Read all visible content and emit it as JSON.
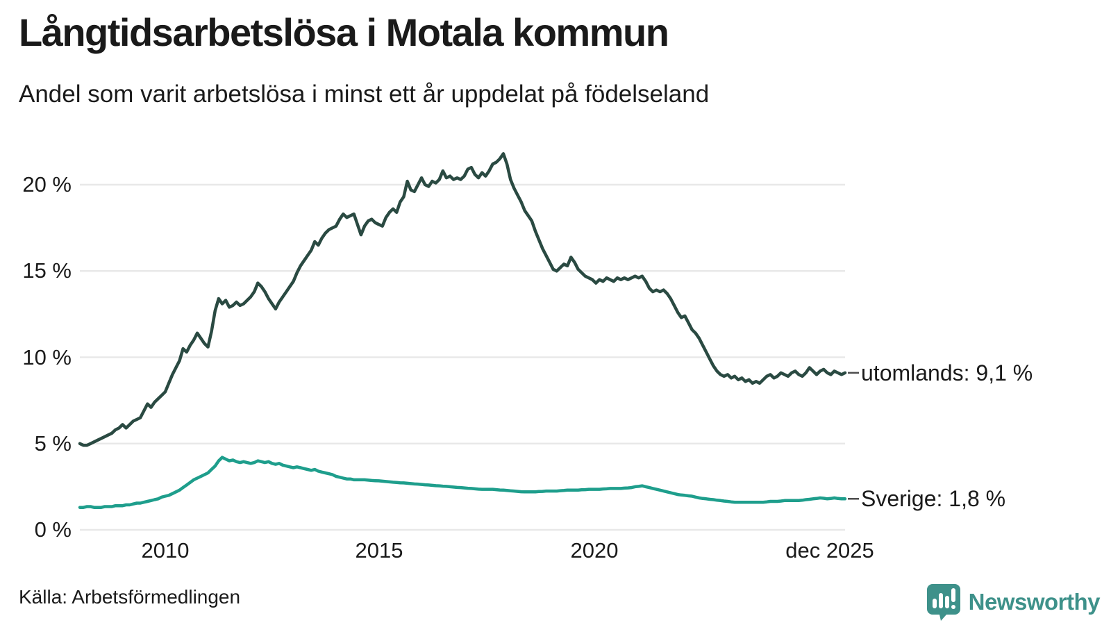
{
  "header": {
    "title": "Långtidsarbetslösa i Motala kommun",
    "subtitle": "Andel som varit arbetslösa i minst ett år uppdelat på födelseland"
  },
  "footer": {
    "source": "Källa: Arbetsförmedlingen",
    "brand": "Newsworthy",
    "brand_color": "#3e918a"
  },
  "chart_data": {
    "type": "line",
    "title": "Långtidsarbetslösa i Motala kommun",
    "subtitle": "Andel som varit arbetslösa i minst ett år uppdelat på födelseland",
    "unit": "%",
    "grid": true,
    "gridline_color": "#e8e8e8",
    "x_start": "jan 2008",
    "x_end": "dec 2025",
    "x_ticks": [
      "2010",
      "2015",
      "2020",
      "dec 2025"
    ],
    "x_tick_positions": [
      2010.0,
      2015.0,
      2020.0,
      2025.917
    ],
    "y_ticks": [
      "20 %",
      "15 %",
      "10 %",
      "5 %",
      "0 %"
    ],
    "y_tick_values": [
      20,
      15,
      10,
      5,
      0
    ],
    "ylim": [
      0,
      22
    ],
    "frequency": "monthly",
    "series": [
      {
        "name": "utomlands",
        "label": "utomlands: 9,1 %",
        "last_value": 9.1,
        "color": "#2a4a42",
        "values": [
          5.0,
          4.9,
          4.9,
          5.0,
          5.1,
          5.2,
          5.3,
          5.4,
          5.5,
          5.6,
          5.8,
          5.9,
          6.1,
          5.9,
          6.1,
          6.3,
          6.4,
          6.5,
          6.9,
          7.3,
          7.1,
          7.4,
          7.6,
          7.8,
          8.0,
          8.5,
          9.0,
          9.4,
          9.8,
          10.5,
          10.3,
          10.7,
          11.0,
          11.4,
          11.1,
          10.8,
          10.6,
          11.5,
          12.7,
          13.4,
          13.1,
          13.3,
          12.9,
          13.0,
          13.2,
          13.0,
          13.1,
          13.3,
          13.5,
          13.8,
          14.3,
          14.1,
          13.8,
          13.4,
          13.1,
          12.8,
          13.2,
          13.5,
          13.8,
          14.1,
          14.4,
          14.9,
          15.3,
          15.6,
          15.9,
          16.2,
          16.7,
          16.5,
          16.9,
          17.2,
          17.4,
          17.5,
          17.6,
          18.0,
          18.3,
          18.1,
          18.2,
          18.3,
          17.7,
          17.1,
          17.6,
          17.9,
          18.0,
          17.8,
          17.7,
          17.6,
          18.1,
          18.4,
          18.6,
          18.4,
          19.0,
          19.3,
          20.2,
          19.7,
          19.6,
          20.0,
          20.4,
          20.0,
          19.9,
          20.2,
          20.1,
          20.3,
          20.8,
          20.4,
          20.5,
          20.3,
          20.4,
          20.3,
          20.5,
          20.9,
          21.0,
          20.6,
          20.4,
          20.7,
          20.5,
          20.8,
          21.2,
          21.3,
          21.5,
          21.8,
          21.2,
          20.3,
          19.8,
          19.4,
          19.0,
          18.5,
          18.2,
          17.9,
          17.3,
          16.8,
          16.3,
          15.9,
          15.5,
          15.1,
          15.0,
          15.2,
          15.4,
          15.3,
          15.8,
          15.5,
          15.1,
          14.9,
          14.7,
          14.6,
          14.5,
          14.3,
          14.5,
          14.4,
          14.6,
          14.5,
          14.4,
          14.6,
          14.5,
          14.6,
          14.5,
          14.6,
          14.7,
          14.6,
          14.7,
          14.4,
          14.0,
          13.8,
          13.9,
          13.8,
          13.9,
          13.7,
          13.4,
          13.0,
          12.6,
          12.3,
          12.4,
          12.0,
          11.6,
          11.4,
          11.1,
          10.7,
          10.3,
          9.9,
          9.5,
          9.2,
          9.0,
          8.9,
          9.0,
          8.8,
          8.9,
          8.7,
          8.8,
          8.6,
          8.7,
          8.5,
          8.6,
          8.5,
          8.7,
          8.9,
          9.0,
          8.8,
          8.9,
          9.1,
          9.0,
          8.9,
          9.1,
          9.2,
          9.0,
          8.9,
          9.1,
          9.4,
          9.2,
          9.0,
          9.2,
          9.3,
          9.1,
          9.0,
          9.2,
          9.1,
          9.0,
          9.1
        ]
      },
      {
        "name": "Sverige",
        "label": "Sverige: 1,8 %",
        "last_value": 1.8,
        "color": "#1e9e8c",
        "values": [
          1.3,
          1.3,
          1.35,
          1.35,
          1.3,
          1.3,
          1.3,
          1.35,
          1.35,
          1.35,
          1.4,
          1.4,
          1.4,
          1.45,
          1.45,
          1.5,
          1.55,
          1.55,
          1.6,
          1.65,
          1.7,
          1.75,
          1.8,
          1.9,
          1.95,
          2.0,
          2.1,
          2.2,
          2.3,
          2.45,
          2.6,
          2.75,
          2.9,
          3.0,
          3.1,
          3.2,
          3.3,
          3.5,
          3.7,
          4.0,
          4.2,
          4.1,
          4.0,
          4.05,
          3.95,
          3.9,
          3.95,
          3.9,
          3.85,
          3.9,
          4.0,
          3.95,
          3.9,
          3.95,
          3.85,
          3.8,
          3.85,
          3.75,
          3.7,
          3.65,
          3.6,
          3.65,
          3.6,
          3.55,
          3.5,
          3.45,
          3.5,
          3.4,
          3.35,
          3.3,
          3.25,
          3.2,
          3.1,
          3.05,
          3.0,
          2.95,
          2.95,
          2.9,
          2.9,
          2.9,
          2.9,
          2.88,
          2.86,
          2.85,
          2.84,
          2.82,
          2.8,
          2.78,
          2.76,
          2.75,
          2.73,
          2.72,
          2.7,
          2.68,
          2.66,
          2.65,
          2.63,
          2.61,
          2.6,
          2.58,
          2.56,
          2.55,
          2.53,
          2.52,
          2.5,
          2.48,
          2.46,
          2.45,
          2.43,
          2.41,
          2.4,
          2.38,
          2.36,
          2.35,
          2.35,
          2.35,
          2.35,
          2.33,
          2.31,
          2.3,
          2.28,
          2.26,
          2.25,
          2.23,
          2.21,
          2.2,
          2.2,
          2.2,
          2.2,
          2.22,
          2.23,
          2.25,
          2.25,
          2.25,
          2.25,
          2.27,
          2.28,
          2.3,
          2.3,
          2.3,
          2.3,
          2.32,
          2.33,
          2.35,
          2.35,
          2.35,
          2.35,
          2.37,
          2.38,
          2.4,
          2.4,
          2.4,
          2.4,
          2.42,
          2.43,
          2.45,
          2.5,
          2.52,
          2.55,
          2.5,
          2.45,
          2.4,
          2.35,
          2.3,
          2.25,
          2.2,
          2.15,
          2.1,
          2.05,
          2.02,
          2.0,
          1.97,
          1.95,
          1.9,
          1.85,
          1.82,
          1.8,
          1.77,
          1.75,
          1.72,
          1.7,
          1.67,
          1.65,
          1.62,
          1.6,
          1.6,
          1.6,
          1.6,
          1.6,
          1.6,
          1.6,
          1.6,
          1.6,
          1.62,
          1.65,
          1.65,
          1.65,
          1.67,
          1.7,
          1.7,
          1.7,
          1.7,
          1.7,
          1.72,
          1.75,
          1.77,
          1.8,
          1.82,
          1.85,
          1.83,
          1.8,
          1.82,
          1.85,
          1.82,
          1.8,
          1.8
        ]
      }
    ],
    "legend_position": "right-end-labels"
  }
}
